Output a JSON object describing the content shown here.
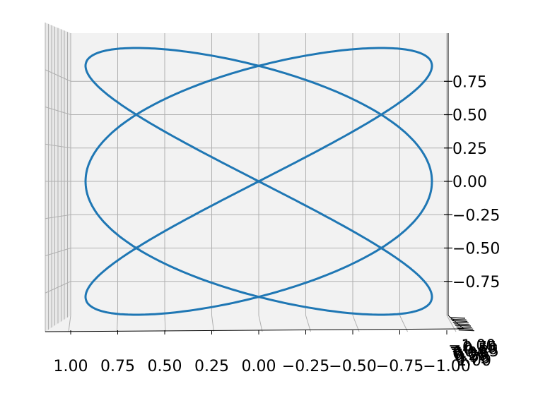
{
  "chart_data": {
    "type": "line",
    "projection": "3d",
    "title": "",
    "xlabel": "",
    "ylabel": "",
    "zlabel": "",
    "grid": true,
    "colors": {
      "line": "#1f77b4",
      "pane": "#f2f2f2",
      "grid": "#b0b0b0",
      "axis": "#000000"
    },
    "x_ticks": [
      "1.00",
      "0.75",
      "0.50",
      "0.25",
      "0.00",
      "−0.25",
      "−0.50",
      "−0.75",
      "−1.00"
    ],
    "x_range": [
      1.0,
      -1.0
    ],
    "z_ticks": [
      "0.75",
      "0.50",
      "0.25",
      "0.00",
      "−0.25",
      "−0.50",
      "−0.75"
    ],
    "z_tick_values": [
      0.75,
      0.5,
      0.25,
      0.0,
      -0.25,
      -0.5,
      -0.75
    ],
    "z_range": [
      -1.0,
      1.0
    ],
    "y_ticks": [
      "−1.00",
      "−0.75",
      "−0.50",
      "−0.25",
      "0.00",
      "0.25",
      "0.50",
      "0.75",
      "1.00"
    ],
    "curve": {
      "x": "sin(3t + pi/2)",
      "z": "sin(2t)",
      "t_range": [
        0,
        6.2832
      ]
    }
  }
}
